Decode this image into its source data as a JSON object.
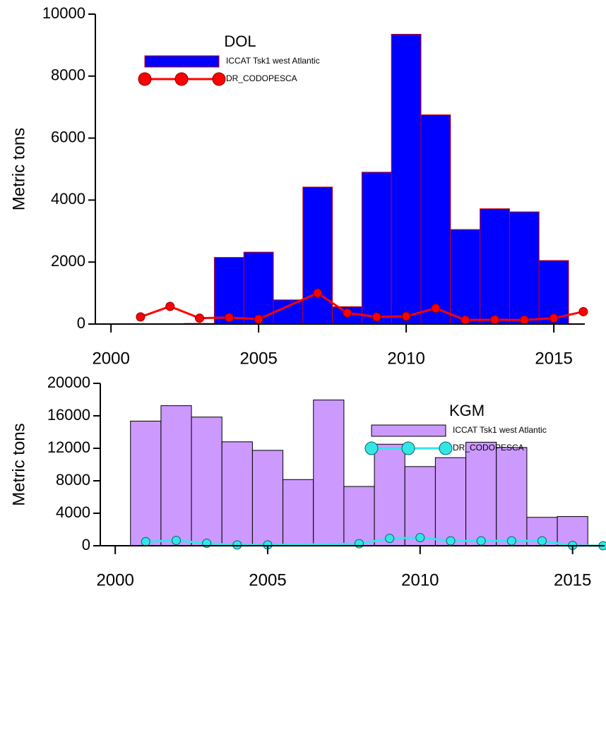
{
  "chart_data": [
    {
      "type": "bar",
      "title": "DOL",
      "y_label": "Metric tons",
      "xlim": [
        1999.47,
        2016.05
      ],
      "ylim": [
        0,
        10000
      ],
      "xticks": [
        2000,
        2005,
        2010,
        2015
      ],
      "yticks": [
        0,
        2000,
        4000,
        6000,
        8000,
        10000
      ],
      "legend": "upper center",
      "series": [
        {
          "name": "ICCAT Tsk1 west Atlantic",
          "type": "bar",
          "color": "#0000ff",
          "edgecolor": "#cc0000",
          "x": [
            2003,
            2004,
            2005,
            2006,
            2007,
            2008,
            2009,
            2010,
            2011,
            2012,
            2013,
            2014,
            2015
          ],
          "values": [
            20,
            2150,
            2320,
            780,
            4420,
            560,
            4900,
            9350,
            6750,
            3050,
            3720,
            3620,
            2050
          ]
        },
        {
          "name": "DR_CODOPESCA",
          "type": "line",
          "color": "#ff0000",
          "edgecolor": "#800000",
          "x": [
            2001,
            2002,
            2003,
            2004,
            2005,
            2007,
            2008,
            2009,
            2010,
            2011,
            2012,
            2013,
            2014,
            2015,
            2016
          ],
          "values": [
            230,
            570,
            190,
            210,
            160,
            1000,
            360,
            230,
            250,
            510,
            130,
            140,
            130,
            190,
            400
          ]
        }
      ]
    },
    {
      "type": "bar",
      "title": "KGM",
      "y_label": "Metric tons",
      "xlim": [
        1999.51,
        2016.05
      ],
      "ylim": [
        0,
        20000
      ],
      "xticks": [
        2000,
        2005,
        2010,
        2015
      ],
      "yticks": [
        0,
        4000,
        8000,
        12000,
        16000,
        20000
      ],
      "legend": "upper right",
      "series": [
        {
          "name": "ICCAT Tsk1 west Atlantic",
          "type": "bar",
          "color": "#cc99ff",
          "edgecolor": "#000000",
          "x": [
            2001,
            2002,
            2003,
            2004,
            2005,
            2006,
            2007,
            2008,
            2009,
            2010,
            2011,
            2012,
            2013,
            2014,
            2015
          ],
          "values": [
            15350,
            17250,
            15850,
            12800,
            11750,
            8150,
            17950,
            7300,
            12500,
            9750,
            10850,
            12750,
            12100,
            3500,
            3600
          ]
        },
        {
          "name": "DR_CODOPESCA",
          "type": "line",
          "color": "#33e6e6",
          "edgecolor": "#006666",
          "x": [
            2001,
            2002,
            2003,
            2004,
            2005,
            2008,
            2009,
            2010,
            2011,
            2012,
            2013,
            2014,
            2015,
            2016
          ],
          "values": [
            500,
            650,
            300,
            100,
            100,
            250,
            900,
            1000,
            600,
            600,
            600,
            600,
            30,
            0
          ]
        }
      ]
    }
  ]
}
